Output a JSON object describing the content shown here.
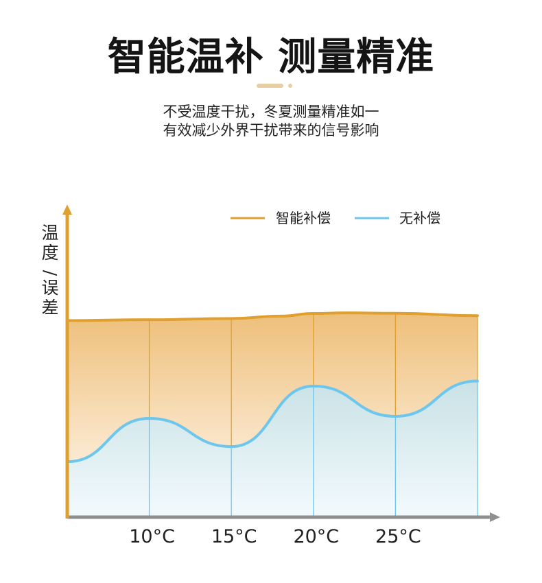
{
  "header": {
    "title": "智能温补 测量精准",
    "subtitle_line1": "不受温度干扰，冬夏测量精准如一",
    "subtitle_line2": "有效减少外界干扰带来的信号影响"
  },
  "colors": {
    "compensated": "#e0a030",
    "uncompensated": "#6cc6ee",
    "x_axis": "#8f8f8f",
    "y_axis": "#e0a030"
  },
  "chart_data": {
    "type": "area",
    "ylabel": "温度/误差",
    "x_tick_labels": [
      "10°C",
      "15°C",
      "20°C",
      "25°C"
    ],
    "x_ticks": [
      10,
      15,
      20,
      25
    ],
    "xlim": [
      5,
      30
    ],
    "ylim": [
      0,
      100
    ],
    "legend_position": "top",
    "series": [
      {
        "name": "智能补偿",
        "x": [
          5,
          10,
          15,
          18,
          20,
          22,
          25,
          30
        ],
        "values": [
          97.5,
          97.9,
          98.5,
          99.7,
          101.0,
          101.3,
          101.1,
          99.9
        ]
      },
      {
        "name": "无补偿",
        "x": [
          5,
          10,
          15,
          20,
          25,
          30
        ],
        "values": [
          27.5,
          49.0,
          35.0,
          65.0,
          50.0,
          67.5
        ]
      }
    ]
  }
}
